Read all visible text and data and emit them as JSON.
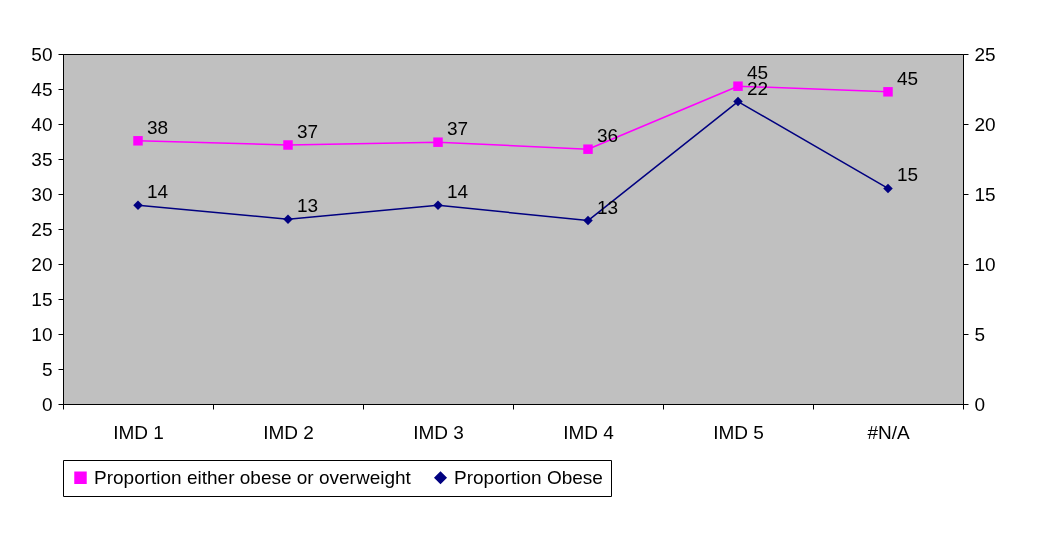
{
  "chart_data": {
    "type": "line",
    "categories": [
      "IMD 1",
      "IMD 2",
      "IMD 3",
      "IMD 4",
      "IMD 5",
      "#N/A"
    ],
    "series": [
      {
        "name": "Proportion either obese or overweight",
        "color": "#ff00ff",
        "marker": "square",
        "values": [
          37.6,
          37.0,
          37.4,
          36.4,
          45.4,
          44.6
        ],
        "value_labels": [
          "38",
          "37",
          "37",
          "36",
          "45",
          "45"
        ]
      },
      {
        "name": "Proportion Obese",
        "color": "#000080",
        "marker": "diamond",
        "axis": "y2",
        "values": [
          14.2,
          13.2,
          14.2,
          13.1,
          21.6,
          15.4
        ],
        "value_labels": [
          "14",
          "13",
          "14",
          "13",
          "22",
          "15"
        ]
      }
    ],
    "ylim": [
      0,
      50
    ],
    "yticks": [
      0,
      5,
      10,
      15,
      20,
      25,
      30,
      35,
      40,
      45,
      50
    ],
    "y2lim": [
      0,
      25
    ],
    "y2ticks": [
      0,
      5,
      10,
      15,
      20,
      25
    ],
    "grid": false,
    "legend": "bottom"
  }
}
